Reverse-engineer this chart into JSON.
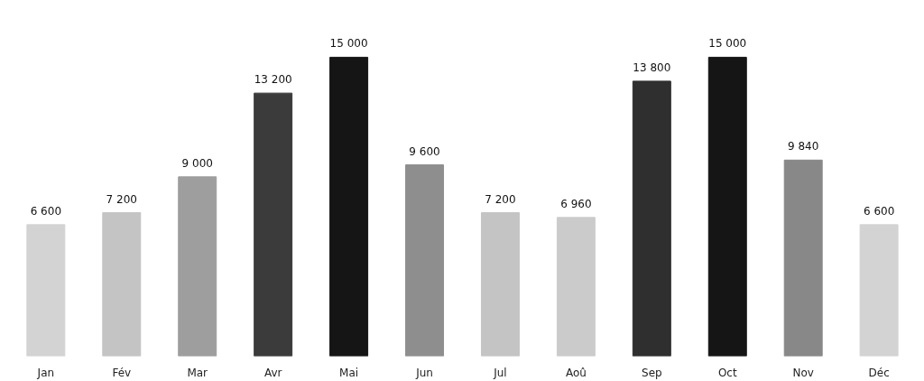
{
  "chart_data": {
    "type": "bar",
    "categories": [
      "Jan",
      "Fév",
      "Mar",
      "Avr",
      "Mai",
      "Jun",
      "Jul",
      "Aoû",
      "Sep",
      "Oct",
      "Nov",
      "Déc"
    ],
    "values": [
      6600,
      7200,
      9000,
      13200,
      15000,
      9600,
      7200,
      6960,
      13800,
      15000,
      9840,
      6600
    ],
    "colors": [
      "#d3d3d3",
      "#c4c4c4",
      "#9e9e9e",
      "#3b3b3b",
      "#151515",
      "#8e8e8e",
      "#c4c4c4",
      "#cbcbcb",
      "#2f2f2f",
      "#151515",
      "#888888",
      "#d3d3d3"
    ],
    "value_labels": [
      "6 600",
      "7 200",
      "9 000",
      "13 200",
      "15 000",
      "9 600",
      "7 200",
      "6 960",
      "13 800",
      "15 000",
      "9 840",
      "6 600"
    ],
    "grid": false
  }
}
